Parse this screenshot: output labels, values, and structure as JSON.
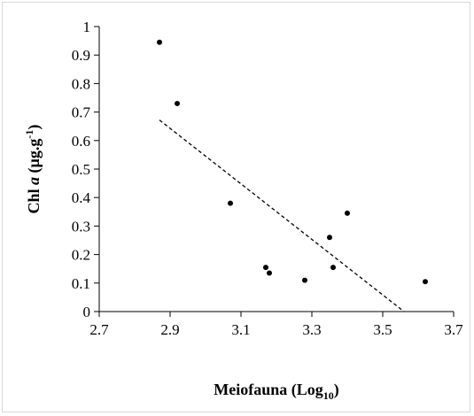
{
  "chart_data": {
    "type": "scatter",
    "xlabel": "Meiofauna (Log",
    "xlabel_sub": "10",
    "xlabel_end": ")",
    "ylabel_prefix": "Chl ",
    "ylabel_italic": "a",
    "ylabel_unit": " (µg.g",
    "ylabel_sup": "-1",
    "ylabel_end": ")",
    "xlim": [
      2.7,
      3.7
    ],
    "ylim": [
      0,
      1
    ],
    "x_ticks": [
      "2.7",
      "2.9",
      "3.1",
      "3.3",
      "3.5",
      "3.7"
    ],
    "y_ticks": [
      "0",
      "0.1",
      "0.2",
      "0.3",
      "0.4",
      "0.5",
      "0.6",
      "0.7",
      "0.8",
      "0.9",
      "1"
    ],
    "points": [
      {
        "x": 2.87,
        "y": 0.945
      },
      {
        "x": 2.92,
        "y": 0.73
      },
      {
        "x": 3.07,
        "y": 0.38
      },
      {
        "x": 3.17,
        "y": 0.155
      },
      {
        "x": 3.18,
        "y": 0.135
      },
      {
        "x": 3.28,
        "y": 0.11
      },
      {
        "x": 3.35,
        "y": 0.26
      },
      {
        "x": 3.36,
        "y": 0.155
      },
      {
        "x": 3.4,
        "y": 0.345
      },
      {
        "x": 3.62,
        "y": 0.105
      }
    ],
    "trendline": {
      "style": "dashed",
      "x1": 2.87,
      "y1": 0.672,
      "x2": 3.56,
      "y2": 0.0
    },
    "grid": false,
    "legend": "none",
    "point_color": "#000000"
  }
}
